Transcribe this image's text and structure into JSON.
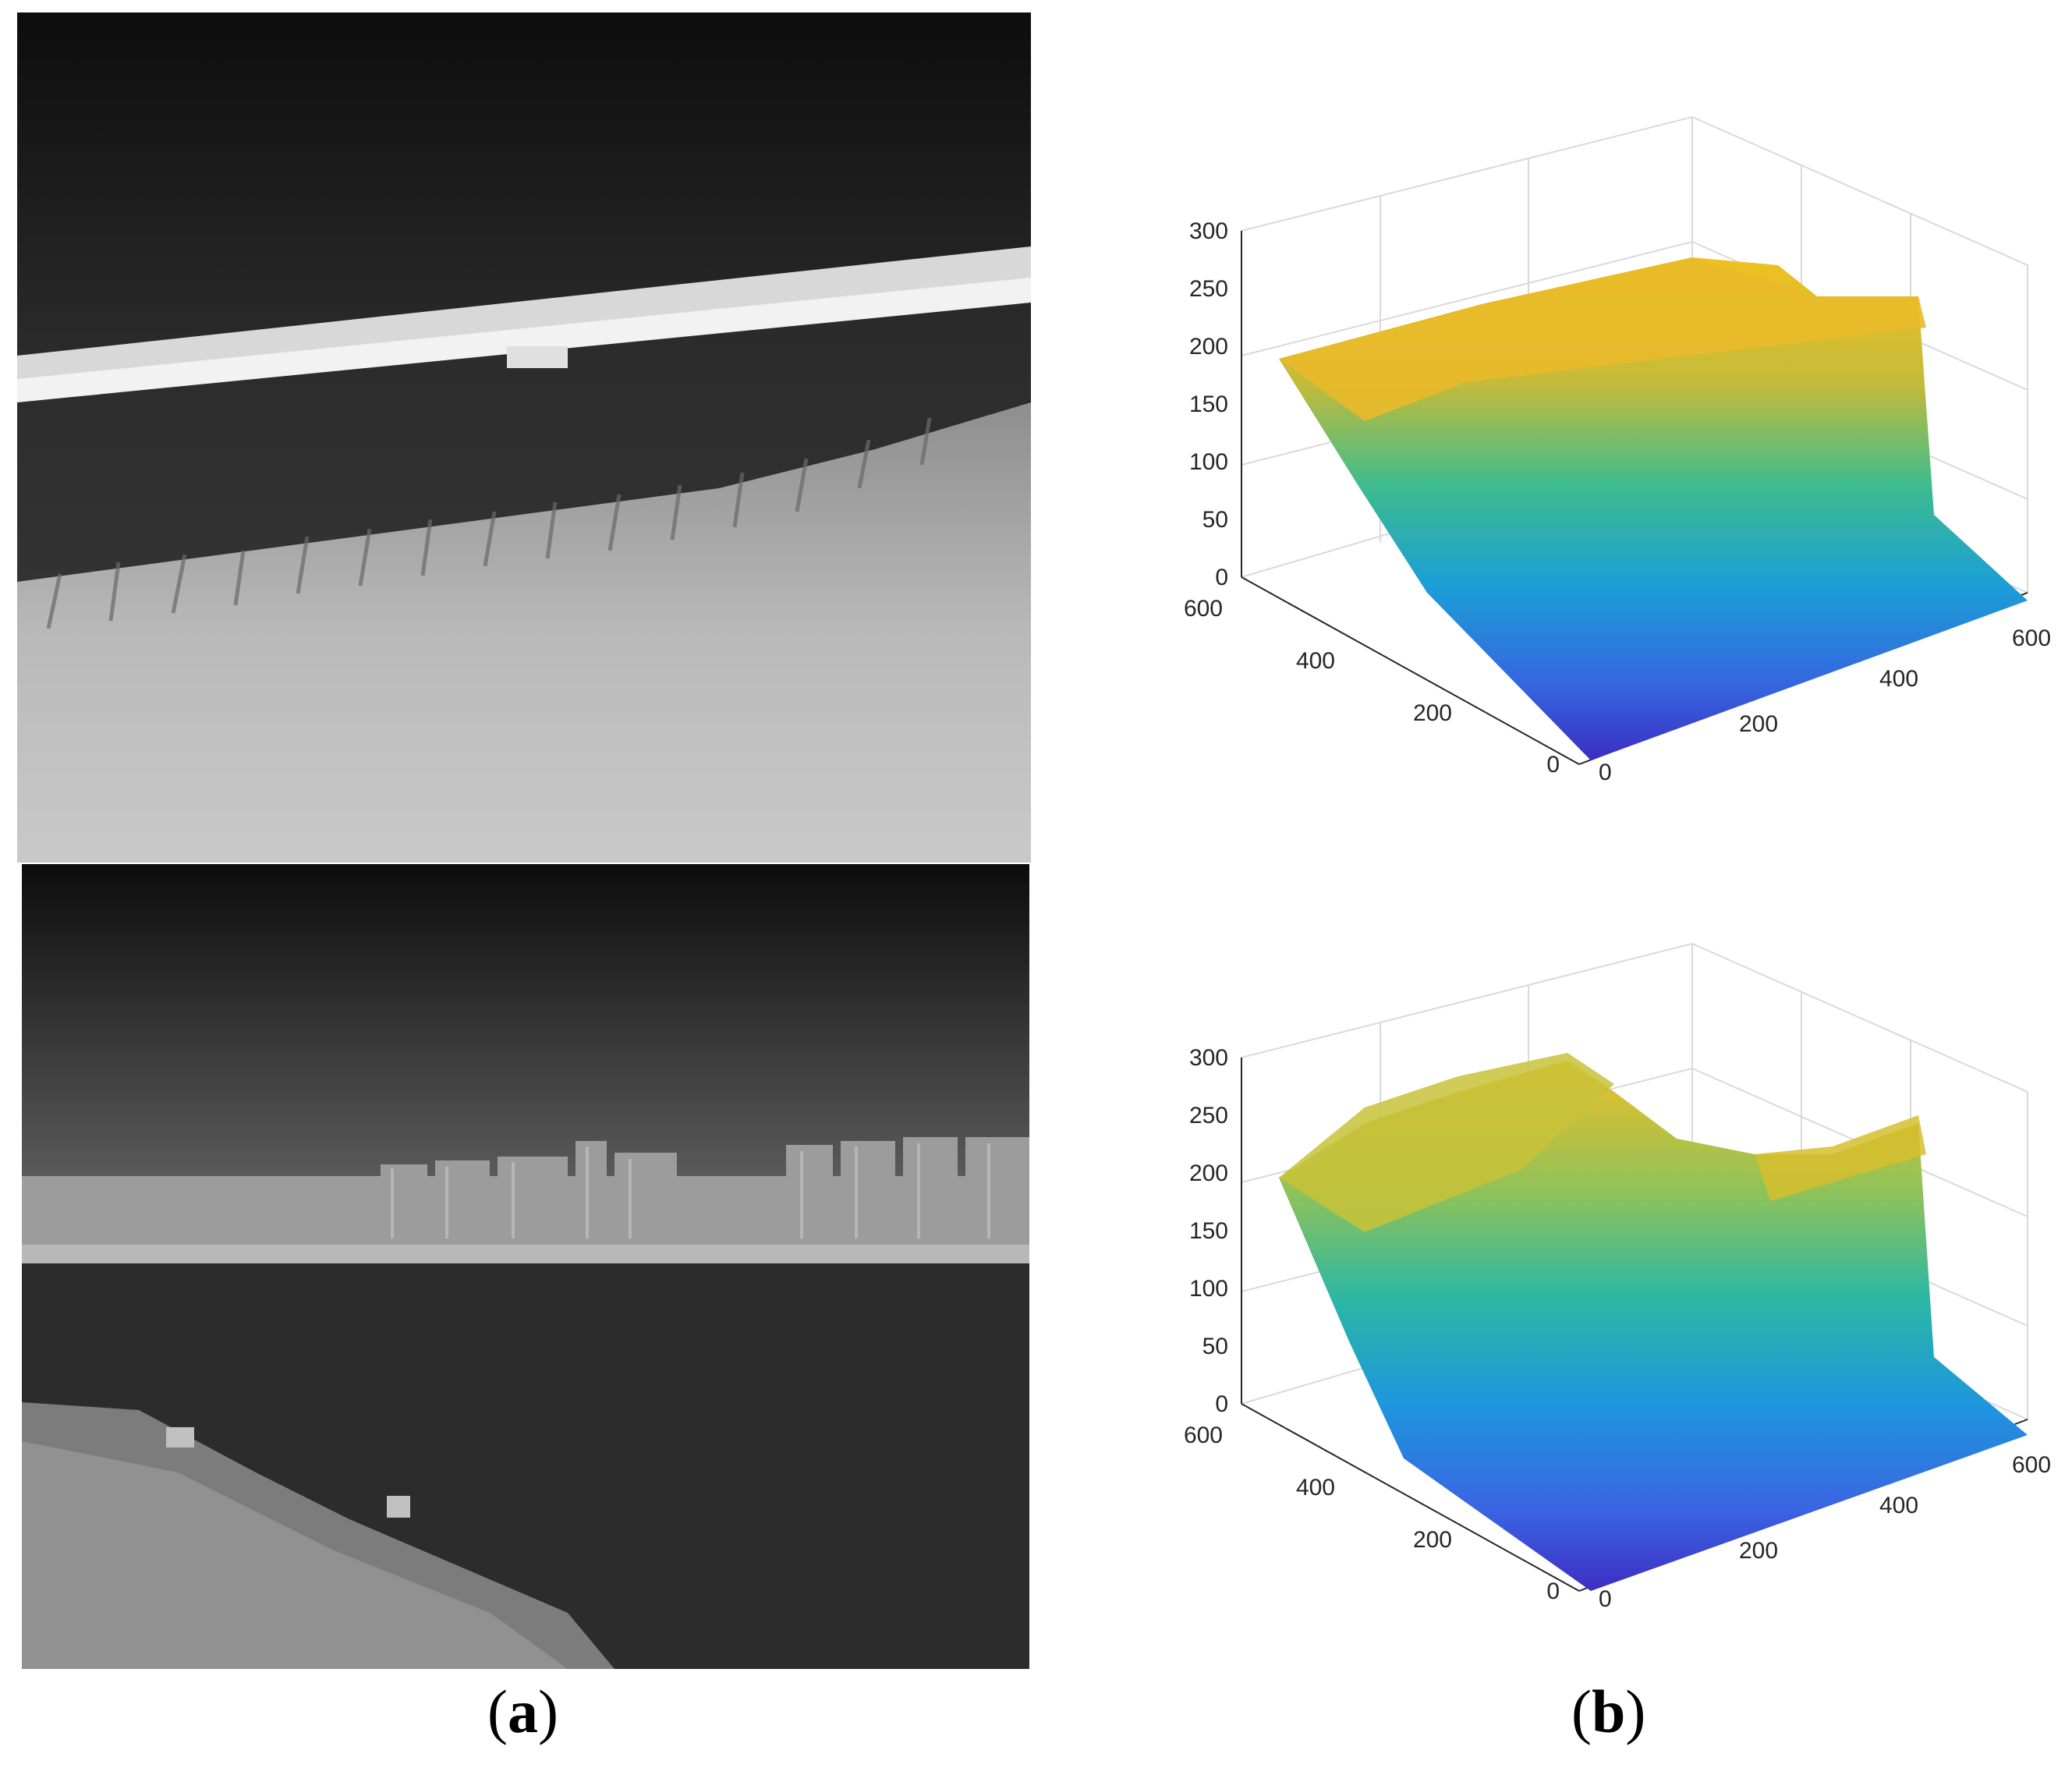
{
  "captions": {
    "a": "(a)",
    "a_letter": "a",
    "b": "(b)",
    "b_letter": "b"
  },
  "photos": [
    {
      "name": "infrared-sea-scene-top",
      "tone": "grayscale"
    },
    {
      "name": "infrared-city-shoreline-bottom",
      "tone": "grayscale"
    }
  ],
  "chart_data": [
    {
      "type": "surface",
      "panel": "b-top",
      "title": "",
      "z_ticks": [
        "0",
        "50",
        "100",
        "150",
        "200",
        "250",
        "300"
      ],
      "zlim": [
        0,
        300
      ],
      "x_ticks": [
        "0",
        "200",
        "400",
        "600"
      ],
      "y_ticks": [
        "0",
        "200",
        "400",
        "600"
      ],
      "xlim": [
        0,
        640
      ],
      "ylim": [
        0,
        600
      ],
      "grid": true,
      "colormap": "parula"
    },
    {
      "type": "surface",
      "panel": "b-bottom",
      "title": "",
      "z_ticks": [
        "0",
        "50",
        "100",
        "150",
        "200",
        "250",
        "300"
      ],
      "zlim": [
        0,
        300
      ],
      "x_ticks": [
        "0",
        "200",
        "400",
        "600"
      ],
      "y_ticks": [
        "0",
        "200",
        "400",
        "600"
      ],
      "xlim": [
        0,
        640
      ],
      "ylim": [
        0,
        600
      ],
      "grid": true,
      "colormap": "parula"
    }
  ]
}
